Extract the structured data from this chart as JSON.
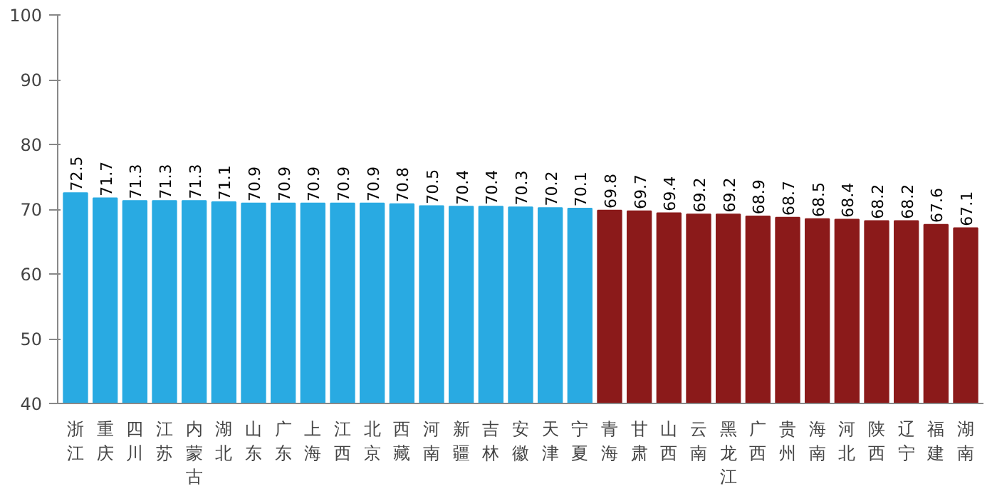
{
  "chart_data": {
    "type": "bar",
    "categories": [
      "浙江",
      "重庆",
      "四川",
      "江苏",
      "内蒙古",
      "湖北",
      "山东",
      "广东",
      "上海",
      "江西",
      "北京",
      "西藏",
      "河南",
      "新疆",
      "吉林",
      "安徽",
      "天津",
      "宁夏",
      "青海",
      "甘肃",
      "山西",
      "云南",
      "黑龙江",
      "广西",
      "贵州",
      "海南",
      "河北",
      "陕西",
      "辽宁",
      "福建",
      "湖南"
    ],
    "values": [
      72.5,
      71.7,
      71.3,
      71.3,
      71.3,
      71.1,
      70.9,
      70.9,
      70.9,
      70.9,
      70.9,
      70.8,
      70.5,
      70.4,
      70.4,
      70.3,
      70.2,
      70.1,
      69.8,
      69.7,
      69.4,
      69.2,
      69.2,
      68.9,
      68.7,
      68.5,
      68.4,
      68.2,
      68.2,
      67.6,
      67.1
    ],
    "colors": [
      "#29aae2",
      "#29aae2",
      "#29aae2",
      "#29aae2",
      "#29aae2",
      "#29aae2",
      "#29aae2",
      "#29aae2",
      "#29aae2",
      "#29aae2",
      "#29aae2",
      "#29aae2",
      "#29aae2",
      "#29aae2",
      "#29aae2",
      "#29aae2",
      "#29aae2",
      "#29aae2",
      "#8b1a1a",
      "#8b1a1a",
      "#8b1a1a",
      "#8b1a1a",
      "#8b1a1a",
      "#8b1a1a",
      "#8b1a1a",
      "#8b1a1a",
      "#8b1a1a",
      "#8b1a1a",
      "#8b1a1a",
      "#8b1a1a",
      "#8b1a1a"
    ],
    "ylim": [
      40,
      100
    ],
    "yticks": [
      40,
      50,
      60,
      70,
      80,
      90,
      100
    ],
    "grid": false,
    "data_labels": true
  }
}
